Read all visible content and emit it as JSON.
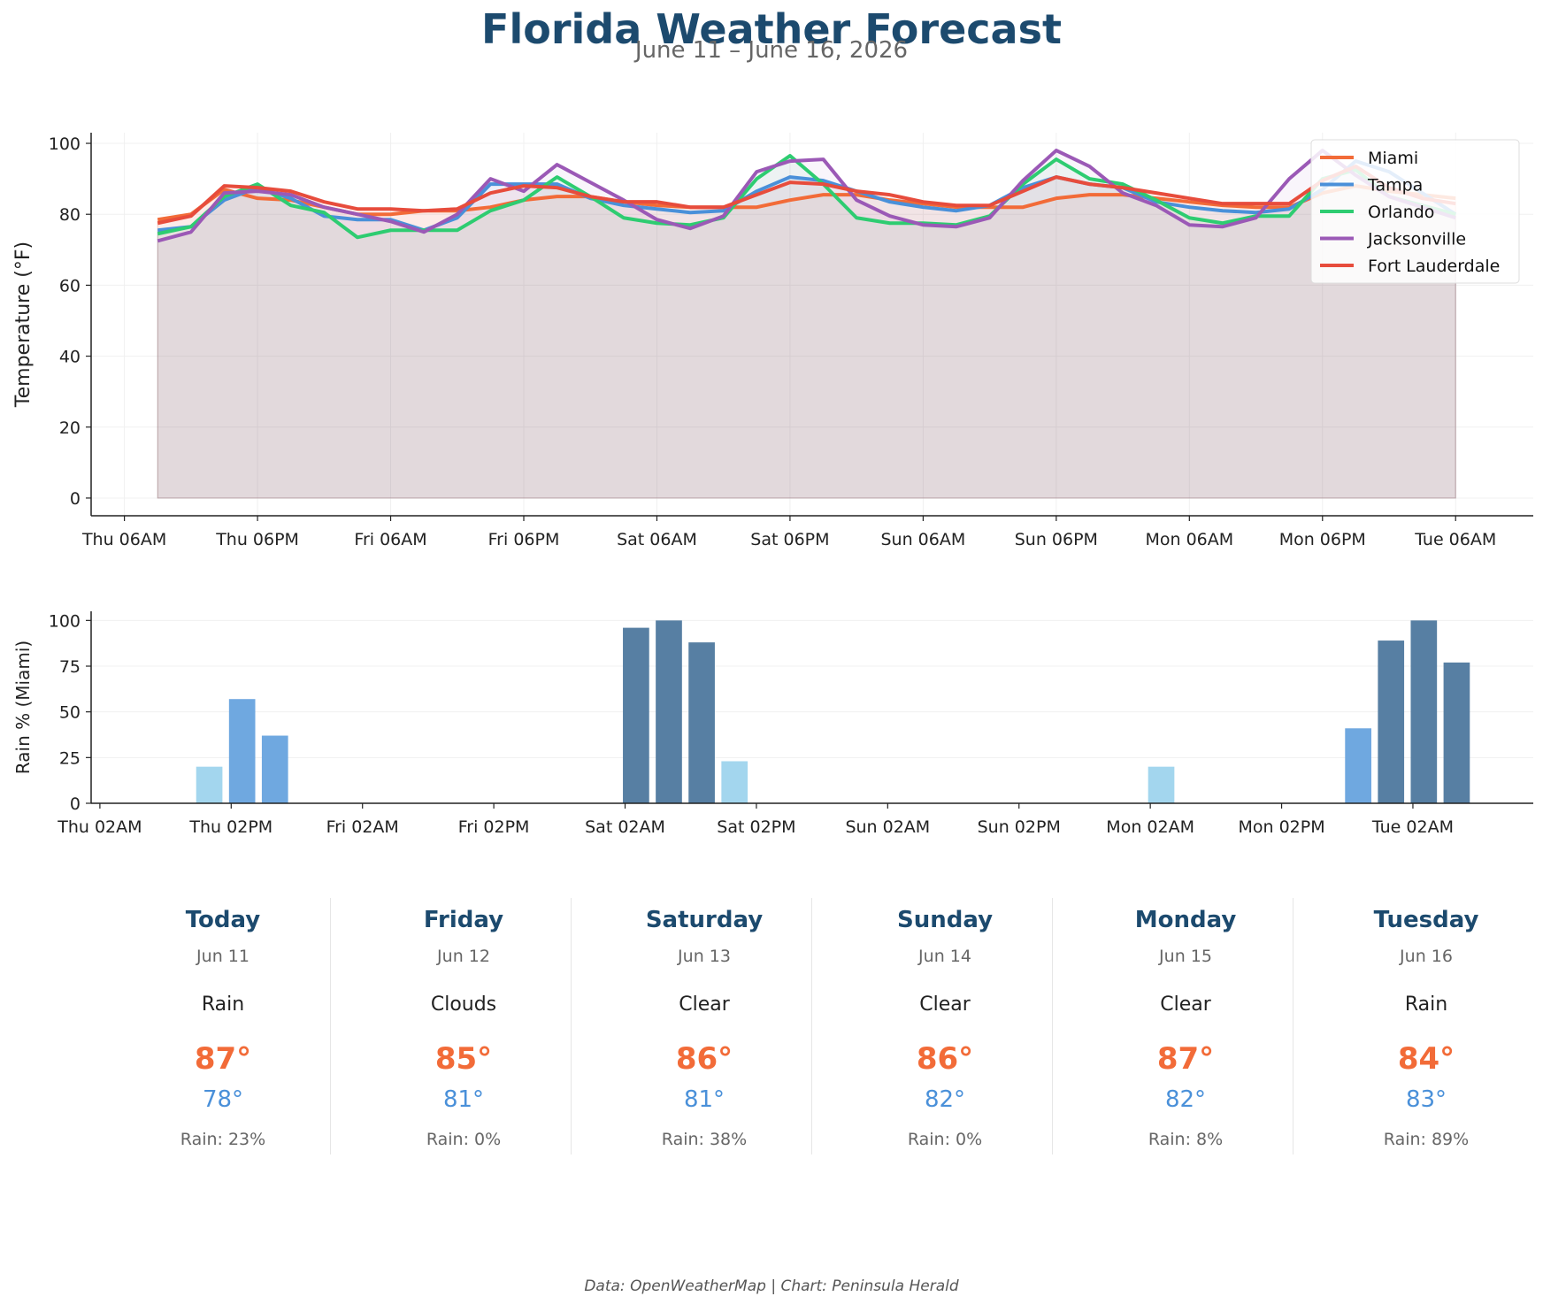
{
  "header": {
    "title": "Florida Weather Forecast",
    "subtitle": "June 11 – June 16, 2026"
  },
  "credit": "Data: OpenWeatherMap | Chart: Peninsula Herald",
  "colors": {
    "Miami": "#f26b38",
    "Tampa": "#4a90d9",
    "Orlando": "#2ecc71",
    "Jacksonville": "#9b59b6",
    "Fort Lauderdale": "#e74c3c",
    "rain_heavy": "#577fa3",
    "rain_medium": "#6fa8e0",
    "rain_light": "#a3d6ee",
    "title": "#1c4a6e",
    "high_temp": "#f26b38",
    "low_temp": "#4a90d9"
  },
  "chart_data": [
    {
      "type": "line",
      "title": "",
      "xlabel": "",
      "ylabel": "Temperature (°F)",
      "ylim": [
        -5,
        103
      ],
      "yticks": [
        0,
        20,
        40,
        60,
        80,
        100
      ],
      "grid": true,
      "legend": "top-right",
      "x_unit": "hours since Thu 06AM",
      "xlim": [
        -3,
        127
      ],
      "xticks": [
        {
          "x": 0,
          "label": "Thu 06AM"
        },
        {
          "x": 12,
          "label": "Thu 06PM"
        },
        {
          "x": 24,
          "label": "Fri 06AM"
        },
        {
          "x": 36,
          "label": "Fri 06PM"
        },
        {
          "x": 48,
          "label": "Sat 06AM"
        },
        {
          "x": 60,
          "label": "Sat 06PM"
        },
        {
          "x": 72,
          "label": "Sun 06AM"
        },
        {
          "x": 84,
          "label": "Sun 06PM"
        },
        {
          "x": 96,
          "label": "Mon 06AM"
        },
        {
          "x": 108,
          "label": "Mon 06PM"
        },
        {
          "x": 120,
          "label": "Tue 06AM"
        }
      ],
      "x": [
        3,
        6,
        9,
        12,
        15,
        18,
        21,
        24,
        27,
        30,
        33,
        36,
        39,
        42,
        45,
        48,
        51,
        54,
        57,
        60,
        63,
        66,
        69,
        72,
        75,
        78,
        81,
        84,
        87,
        90,
        93,
        96,
        99,
        102,
        105,
        108,
        111,
        114,
        117,
        120
      ],
      "series": [
        {
          "name": "Miami",
          "values": [
            78.5,
            80,
            87,
            84.5,
            84,
            82,
            80,
            80,
            81,
            81,
            82,
            84,
            85,
            85,
            83.5,
            82.5,
            82,
            82,
            82,
            84,
            85.5,
            85.5,
            84,
            83,
            82,
            82,
            82,
            84.5,
            85.5,
            85.5,
            84.5,
            83.5,
            82.5,
            82,
            82,
            86,
            88,
            86.5,
            85.5,
            84.5
          ]
        },
        {
          "name": "Tampa",
          "values": [
            75.5,
            76.5,
            84,
            87.5,
            84.5,
            79.5,
            78.5,
            78.5,
            75.5,
            79,
            88.5,
            88.5,
            88.5,
            84.5,
            82.5,
            81.5,
            80.5,
            81,
            86.5,
            90.5,
            89.5,
            86.5,
            83.5,
            82,
            81,
            82.5,
            87.5,
            90.5,
            88.5,
            87.5,
            83.5,
            82,
            81,
            80.5,
            81.5,
            87,
            95,
            92,
            86,
            80
          ]
        },
        {
          "name": "Orlando",
          "values": [
            74.5,
            76.5,
            85,
            88.5,
            82.5,
            80.5,
            73.5,
            75.5,
            75.5,
            75.5,
            81,
            84,
            90.5,
            85,
            79,
            77.5,
            77,
            79,
            90,
            96.5,
            88.5,
            79,
            77.5,
            77.5,
            77,
            79.5,
            88.5,
            95.5,
            90,
            88.5,
            84,
            79,
            77.5,
            79.5,
            79.5,
            90,
            92.5,
            85,
            82.5,
            80
          ]
        },
        {
          "name": "Jacksonville",
          "values": [
            72.5,
            75,
            86,
            86.5,
            85.5,
            82,
            80,
            78,
            75,
            80,
            90,
            86.5,
            94,
            89,
            84,
            78.5,
            76,
            79.5,
            92,
            95,
            95.5,
            84,
            79.5,
            77,
            76.5,
            79,
            89.5,
            98,
            93.5,
            86,
            82.5,
            77,
            76.5,
            79,
            90,
            98,
            91,
            85,
            82,
            79
          ]
        },
        {
          "name": "Fort Lauderdale",
          "values": [
            77.5,
            79.5,
            88,
            87.5,
            86.5,
            83.5,
            81.5,
            81.5,
            81,
            81.5,
            86,
            88,
            87.5,
            85,
            83.5,
            83.5,
            82,
            82,
            85.5,
            89,
            88.5,
            86.5,
            85.5,
            83.5,
            82.5,
            82.5,
            86.5,
            90.5,
            88.5,
            87.5,
            86,
            84.5,
            83,
            83,
            83,
            89.5,
            93.5,
            87.5,
            84.5,
            83
          ]
        }
      ]
    },
    {
      "type": "bar",
      "title": "",
      "xlabel": "",
      "ylabel": "Rain % (Miami)",
      "ylim": [
        0,
        105
      ],
      "yticks": [
        0,
        25,
        50,
        75,
        100
      ],
      "grid": true,
      "x_unit": "hours since Thu 02AM",
      "xlim": [
        -0.8,
        131
      ],
      "xticks": [
        {
          "x": 0,
          "label": "Thu 02AM"
        },
        {
          "x": 12,
          "label": "Thu 02PM"
        },
        {
          "x": 24,
          "label": "Fri 02AM"
        },
        {
          "x": 36,
          "label": "Fri 02PM"
        },
        {
          "x": 48,
          "label": "Sat 02AM"
        },
        {
          "x": 60,
          "label": "Sat 02PM"
        },
        {
          "x": 72,
          "label": "Sun 02AM"
        },
        {
          "x": 84,
          "label": "Sun 02PM"
        },
        {
          "x": 96,
          "label": "Mon 02AM"
        },
        {
          "x": 108,
          "label": "Mon 02PM"
        },
        {
          "x": 120,
          "label": "Tue 02AM"
        }
      ],
      "x": [
        10,
        13,
        16,
        49,
        52,
        55,
        58,
        97,
        115,
        118,
        121,
        124
      ],
      "values": [
        20,
        57,
        37,
        96,
        100,
        88,
        23,
        20,
        41,
        89,
        100,
        77
      ]
    }
  ],
  "forecast": [
    {
      "day": "Today",
      "date": "Jun 11",
      "condition": "Rain",
      "high": "87°",
      "low": "78°",
      "rain": "Rain: 23%"
    },
    {
      "day": "Friday",
      "date": "Jun 12",
      "condition": "Clouds",
      "high": "85°",
      "low": "81°",
      "rain": "Rain: 0%"
    },
    {
      "day": "Saturday",
      "date": "Jun 13",
      "condition": "Clear",
      "high": "86°",
      "low": "81°",
      "rain": "Rain: 38%"
    },
    {
      "day": "Sunday",
      "date": "Jun 14",
      "condition": "Clear",
      "high": "86°",
      "low": "82°",
      "rain": "Rain: 0%"
    },
    {
      "day": "Monday",
      "date": "Jun 15",
      "condition": "Clear",
      "high": "87°",
      "low": "82°",
      "rain": "Rain: 8%"
    },
    {
      "day": "Tuesday",
      "date": "Jun 16",
      "condition": "Rain",
      "high": "84°",
      "low": "83°",
      "rain": "Rain: 89%"
    }
  ]
}
